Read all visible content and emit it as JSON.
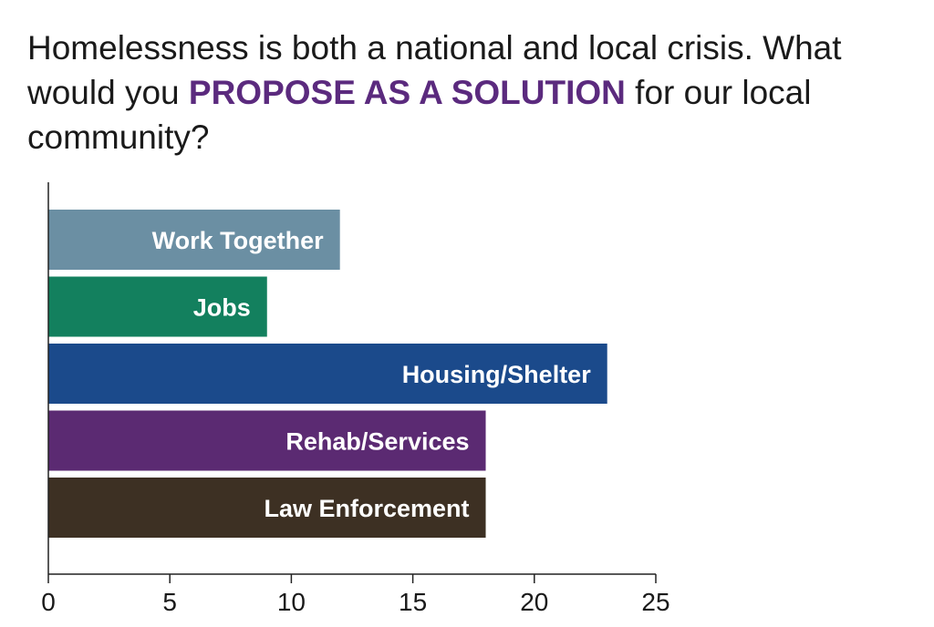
{
  "title": {
    "part1": "Homelessness is both a national and local crisis. What would you ",
    "emphasis": "PROPOSE AS A SOLUTION",
    "part2": " for our local community?"
  },
  "chart_data": {
    "type": "bar",
    "orientation": "horizontal",
    "categories": [
      "Work Together",
      "Jobs",
      "Housing/Shelter",
      "Rehab/Services",
      "Law Enforcement"
    ],
    "values": [
      12,
      9,
      23,
      18,
      18
    ],
    "colors": [
      "#6b8fa3",
      "#13805e",
      "#1b4a8b",
      "#5b2a72",
      "#3d3023"
    ],
    "xlim": [
      0,
      25
    ],
    "xticks": [
      0,
      5,
      10,
      15,
      20,
      25
    ],
    "xlabel": "",
    "ylabel": "",
    "grid": false,
    "legend": "none",
    "accent_color": "#5b2a7e"
  }
}
